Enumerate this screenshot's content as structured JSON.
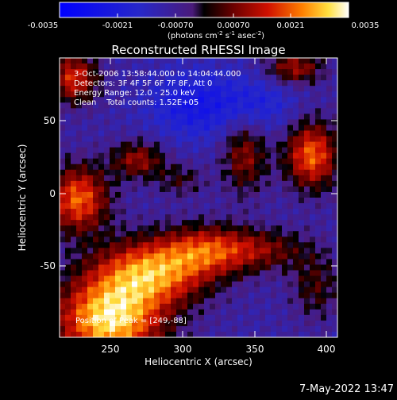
{
  "chart_data": {
    "type": "heatmap",
    "title": "Reconstructed RHESSI Image",
    "xlabel": "Heliocentric X (arcsec)",
    "ylabel": "Heliocentric Y (arcsec)",
    "xlim": [
      215,
      410
    ],
    "ylim": [
      -100,
      92
    ],
    "x_ticks": [
      250,
      300,
      350,
      400
    ],
    "y_ticks": [
      -50,
      0,
      50
    ],
    "colorbar": {
      "ticks": [
        "-0.0035",
        "-0.0021",
        "-0.00070",
        "0.00070",
        "0.0021",
        "0.0035"
      ],
      "range": [
        -0.0035,
        0.0035
      ],
      "unit_text": {
        "pre": "(photons cm",
        "sup1": "-2",
        "mid1": " s",
        "sup2": "-1",
        "mid2": " asec",
        "sup3": "-2",
        "post": ")"
      }
    },
    "annotations": [
      "3-Oct-2006 13:58:44.000 to 14:04:44.000",
      "Detectors: 3F 4F 5F 6F 7F 8F, Att 0",
      "Energy Range: 12.0 - 25.0 keV",
      "Clean    Total counts: 1.52E+05"
    ],
    "peak_annotation": "Position of Peak = [249,-88]",
    "peak": [
      249,
      -88
    ],
    "blobs": [
      {
        "x": 250,
        "y": -88,
        "amp": 0.004,
        "sx": 26,
        "sy": 20
      },
      {
        "x": 280,
        "y": -55,
        "amp": 0.0032,
        "sx": 28,
        "sy": 16
      },
      {
        "x": 320,
        "y": -40,
        "amp": 0.0022,
        "sx": 22,
        "sy": 12
      },
      {
        "x": 360,
        "y": -40,
        "amp": 0.0014,
        "sx": 22,
        "sy": 10
      },
      {
        "x": 228,
        "y": -5,
        "amp": 0.003,
        "sx": 15,
        "sy": 16
      },
      {
        "x": 225,
        "y": 78,
        "amp": 0.0025,
        "sx": 12,
        "sy": 12
      },
      {
        "x": 270,
        "y": 22,
        "amp": 0.0019,
        "sx": 13,
        "sy": 9
      },
      {
        "x": 300,
        "y": 8,
        "amp": 0.001,
        "sx": 12,
        "sy": 8
      },
      {
        "x": 345,
        "y": 25,
        "amp": 0.0018,
        "sx": 11,
        "sy": 18
      },
      {
        "x": 392,
        "y": 25,
        "amp": 0.003,
        "sx": 13,
        "sy": 16
      },
      {
        "x": 380,
        "y": 85,
        "amp": 0.002,
        "sx": 14,
        "sy": 8
      },
      {
        "x": 395,
        "y": -65,
        "amp": 0.0012,
        "sx": 12,
        "sy": 16
      },
      {
        "x": 310,
        "y": 60,
        "amp": -0.0015,
        "sx": 22,
        "sy": 16
      },
      {
        "x": 355,
        "y": 60,
        "amp": -0.001,
        "sx": 18,
        "sy": 14
      }
    ]
  },
  "timestamp": "7-May-2022 13:47"
}
